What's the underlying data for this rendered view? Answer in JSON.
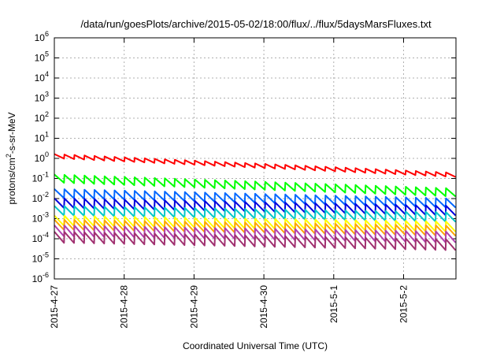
{
  "chart_data": {
    "type": "line",
    "title": "/data/run/goesPlots/archive/2015-05-02/18:00/flux/../flux/5daysMarsFluxes.txt",
    "xlabel": "Coordinated Universal Time (UTC)",
    "ylabel_parts": [
      "protons/cm",
      "2",
      "-s-sr-MeV"
    ],
    "y_scale": "log",
    "ylim": [
      1e-06,
      1000000.0
    ],
    "xlim": [
      "2015-04-27 00:00",
      "2015-05-02 18:00"
    ],
    "grid": true,
    "x_ticks": [
      "2015-4-27",
      "2015-4-28",
      "2015-4-29",
      "2015-4-30",
      "2015-5-1",
      "2015-5-2"
    ],
    "y_ticks": [
      {
        "base": "10",
        "exp": "-6"
      },
      {
        "base": "10",
        "exp": "-5"
      },
      {
        "base": "10",
        "exp": "-4"
      },
      {
        "base": "10",
        "exp": "-3"
      },
      {
        "base": "10",
        "exp": "-2"
      },
      {
        "base": "10",
        "exp": "-1"
      },
      {
        "base": "10",
        "exp": "0"
      },
      {
        "base": "10",
        "exp": "1"
      },
      {
        "base": "10",
        "exp": "2"
      },
      {
        "base": "10",
        "exp": "3"
      },
      {
        "base": "10",
        "exp": "4"
      },
      {
        "base": "10",
        "exp": "5"
      },
      {
        "base": "10",
        "exp": "6"
      }
    ],
    "series": [
      {
        "color": "#ff0000",
        "start": 1.3,
        "end": 0.15,
        "ratio": 1.6,
        "teeth": 40
      },
      {
        "color": "#00ff00",
        "start": 0.1,
        "end": 0.02,
        "ratio": 2.5,
        "teeth": 40
      },
      {
        "color": "#0066ff",
        "start": 0.018,
        "end": 0.006,
        "ratio": 2.8,
        "teeth": 40
      },
      {
        "color": "#0000dd",
        "start": 0.006,
        "end": 0.0025,
        "ratio": 3.0,
        "teeth": 40
      },
      {
        "color": "#00c8c8",
        "start": 0.0025,
        "end": 0.0012,
        "ratio": 3.0,
        "teeth": 40
      },
      {
        "color": "#ffff00",
        "start": 0.0008,
        "end": 0.0004,
        "ratio": 3.2,
        "teeth": 40
      },
      {
        "color": "#ffa500",
        "start": 0.0005,
        "end": 0.00025,
        "ratio": 3.2,
        "teeth": 40
      },
      {
        "color": "#b040b0",
        "start": 0.00025,
        "end": 0.00012,
        "ratio": 3.5,
        "teeth": 40
      },
      {
        "color": "#a03070",
        "start": 0.00012,
        "end": 5e-05,
        "ratio": 3.5,
        "teeth": 40
      }
    ]
  }
}
